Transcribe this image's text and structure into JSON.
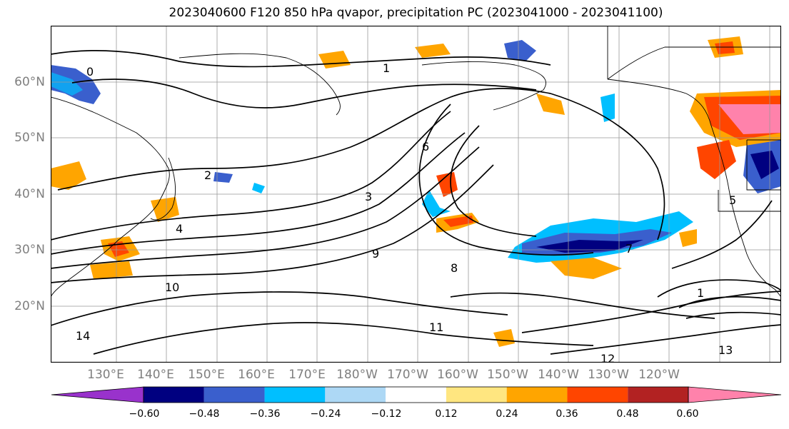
{
  "title": "2023040600 F120 850 hPa qvapor, precipitation PC (2023041000 - 2023041100)",
  "map": {
    "lat_labels": [
      "60°N",
      "50°N",
      "40°N",
      "30°N",
      "20°N"
    ],
    "lon_labels": [
      "130°E",
      "140°E",
      "150°E",
      "160°E",
      "170°E",
      "180°W",
      "170°W",
      "160°W",
      "150°W",
      "140°W",
      "130°W",
      "120°W"
    ],
    "contour_labels": [
      "0",
      "1",
      "2",
      "3",
      "4",
      "6",
      "8",
      "10",
      "11",
      "12",
      "13",
      "14",
      "9",
      "7",
      "5",
      "1"
    ]
  },
  "colorbar": {
    "ticks": [
      "−0.60",
      "−0.48",
      "−0.36",
      "−0.24",
      "−0.12",
      "0.12",
      "0.24",
      "0.36",
      "0.48",
      "0.60"
    ],
    "colors": [
      "#9932cc",
      "#000080",
      "#3a5fcd",
      "#00bfff",
      "#add8f5",
      "#ffffff",
      "#ffe680",
      "#ffa500",
      "#ff4500",
      "#b22222",
      "#ff82ab"
    ]
  }
}
